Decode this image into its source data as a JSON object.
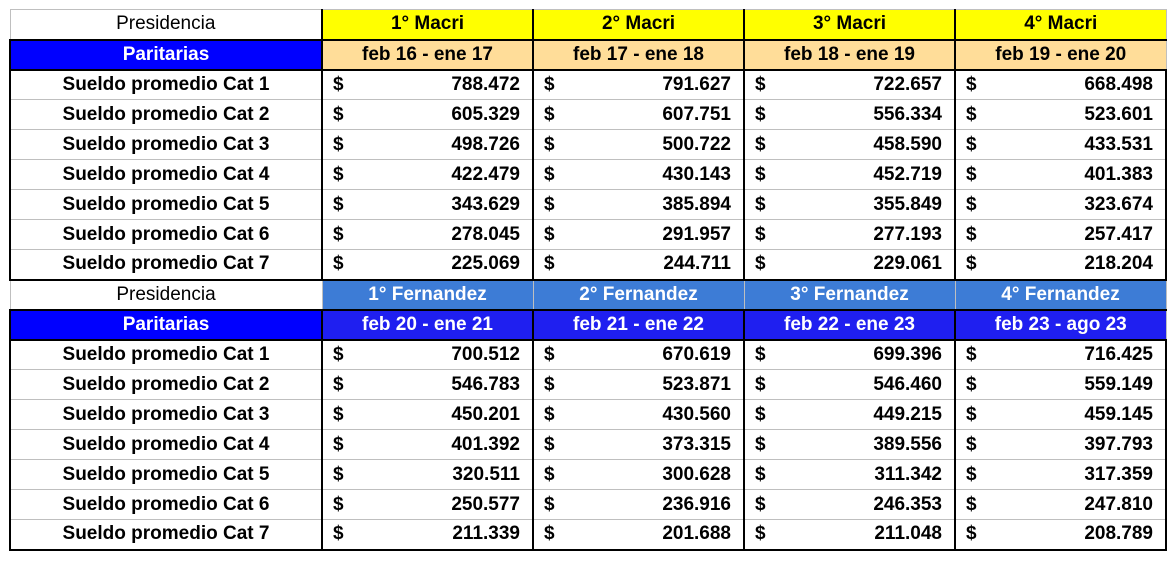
{
  "section1": {
    "presidencia_label": "Presidencia",
    "paritarias_label": "Paritarias",
    "presidents": [
      "1° Macri",
      "2° Macri",
      "3° Macri",
      "4° Macri"
    ],
    "periods": [
      "feb 16 - ene 17",
      "feb 17 - ene 18",
      "feb 18 - ene 19",
      "feb 19 - ene 20"
    ],
    "rows": [
      {
        "label": "Sueldo promedio Cat 1",
        "values": [
          "788.472",
          "791.627",
          "722.657",
          "668.498"
        ]
      },
      {
        "label": "Sueldo promedio Cat 2",
        "values": [
          "605.329",
          "607.751",
          "556.334",
          "523.601"
        ]
      },
      {
        "label": "Sueldo promedio Cat 3",
        "values": [
          "498.726",
          "500.722",
          "458.590",
          "433.531"
        ]
      },
      {
        "label": "Sueldo promedio Cat 4",
        "values": [
          "422.479",
          "430.143",
          "452.719",
          "401.383"
        ]
      },
      {
        "label": "Sueldo promedio Cat 5",
        "values": [
          "343.629",
          "385.894",
          "355.849",
          "323.674"
        ]
      },
      {
        "label": "Sueldo promedio Cat 6",
        "values": [
          "278.045",
          "291.957",
          "277.193",
          "257.417"
        ]
      },
      {
        "label": "Sueldo promedio Cat 7",
        "values": [
          "225.069",
          "244.711",
          "229.061",
          "218.204"
        ]
      }
    ]
  },
  "section2": {
    "presidencia_label": "Presidencia",
    "paritarias_label": "Paritarias",
    "presidents": [
      "1° Fernandez",
      "2° Fernandez",
      "3° Fernandez",
      "4° Fernandez"
    ],
    "periods": [
      "feb 20 - ene 21",
      "feb 21 - ene 22",
      "feb 22 - ene 23",
      "feb 23 - ago 23"
    ],
    "rows": [
      {
        "label": "Sueldo promedio Cat 1",
        "values": [
          "700.512",
          "670.619",
          "699.396",
          "716.425"
        ]
      },
      {
        "label": "Sueldo promedio Cat 2",
        "values": [
          "546.783",
          "523.871",
          "546.460",
          "559.149"
        ]
      },
      {
        "label": "Sueldo promedio Cat 3",
        "values": [
          "450.201",
          "430.560",
          "449.215",
          "459.145"
        ]
      },
      {
        "label": "Sueldo promedio Cat 4",
        "values": [
          "401.392",
          "373.315",
          "389.556",
          "397.793"
        ]
      },
      {
        "label": "Sueldo promedio Cat 5",
        "values": [
          "320.511",
          "300.628",
          "311.342",
          "317.359"
        ]
      },
      {
        "label": "Sueldo promedio Cat 6",
        "values": [
          "250.577",
          "236.916",
          "246.353",
          "247.810"
        ]
      },
      {
        "label": "Sueldo promedio Cat 7",
        "values": [
          "211.339",
          "201.688",
          "211.048",
          "208.789"
        ]
      }
    ]
  },
  "currency_symbol": "$",
  "colors": {
    "macri_header": "#ffff00",
    "macri_period": "#ffdd99",
    "fernandez_header": "#3d7cd6",
    "fernandez_period": "#1f1ff0",
    "paritarias": "#0000ff"
  }
}
